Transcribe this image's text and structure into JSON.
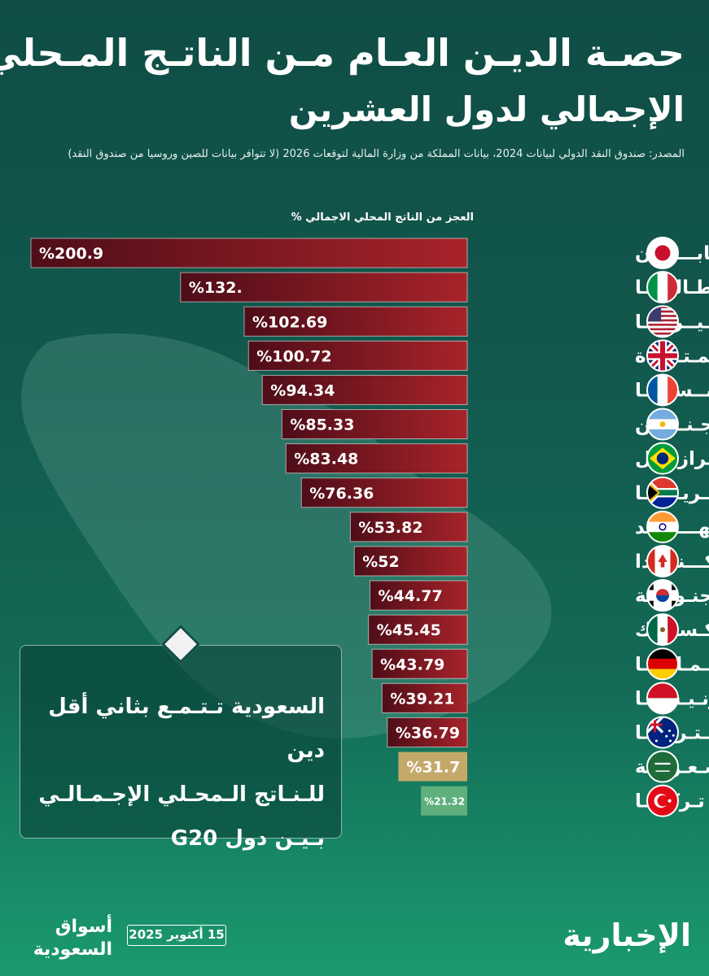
{
  "title_line1": "حصـة الديـن العـام مـن الناتـج المـحلي",
  "title_line2": "الإجمالي لدول العشرين",
  "source": "المصدر: صندوق النقد الدولي لبيانات 2024، بيانات المملكة من وزارة المالية لتوقعات 2026 (لا تتوافر بيانات للصين وروسيا من صندوق النقد)",
  "colors": {
    "bar_dark": "#5a0f1a",
    "bar_light": "#b52a2a",
    "saudi": "#c4a96a",
    "turkey": "#5fb07c"
  },
  "chart_data": {
    "type": "bar",
    "orientation": "horizontal",
    "ylabel": "العجز من الناتج المحلي الاجمالي %",
    "categories": [
      "الـيـابــــــان",
      "إيـطـالـيـــا",
      "أمـيــركـــا",
      "المملكة المـتـحـدة",
      "فـرنــســـــا",
      "الأرجـنـتـيـن",
      "الـبــرازيـــل",
      "جـنـوب أفـريـقـيـا",
      "الهــــنـــد",
      "كـــنــــدا",
      "كوريا الجنـوبـيـة",
      "المـكـسـيــك",
      "ألـمـانـيــا",
      "إنـدونـيـسـيـا",
      "أسـتـرالـيـا",
      "الـسـعـوديـة",
      "تـركـيــا"
    ],
    "values": [
      200.9,
      132,
      102.69,
      100.72,
      94.34,
      85.33,
      83.48,
      76.36,
      53.82,
      52,
      44.77,
      45.45,
      43.79,
      39.21,
      36.79,
      31.7,
      21.32
    ],
    "value_labels": [
      "%200.9",
      "%132.",
      "%102.69",
      "%100.72",
      "%94.34",
      "%85.33",
      "%83.48",
      "%76.36",
      "%53.82",
      "%52",
      "%44.77",
      "%45.45",
      "%43.79",
      "%39.21",
      "%36.79",
      "%31.7",
      "%21.32"
    ],
    "flags": [
      "japan-flag-icon",
      "italy-flag-icon",
      "usa-flag-icon",
      "uk-flag-icon",
      "france-flag-icon",
      "argentina-flag-icon",
      "brazil-flag-icon",
      "south-africa-flag-icon",
      "india-flag-icon",
      "canada-flag-icon",
      "south-korea-flag-icon",
      "mexico-flag-icon",
      "germany-flag-icon",
      "indonesia-flag-icon",
      "australia-flag-icon",
      "saudi-flag-icon",
      "turkey-flag-icon"
    ],
    "highlight": {
      "الـسـعـوديـة": "saudi",
      "تـركـيــا": "turkey"
    },
    "xlim": [
      0,
      200.9
    ]
  },
  "callout": {
    "line1": "السعودية تـتـمـع بثاني أقل دين",
    "line2": "للـنـاتج الـمحـلي الإجـمـالـي",
    "line3": "بـيـن دول G20"
  },
  "footer": {
    "logo_line1": "أسواق",
    "logo_line2": "السعودية",
    "date": "15 أكتوبر 2025",
    "brand": "الإخبارية"
  }
}
